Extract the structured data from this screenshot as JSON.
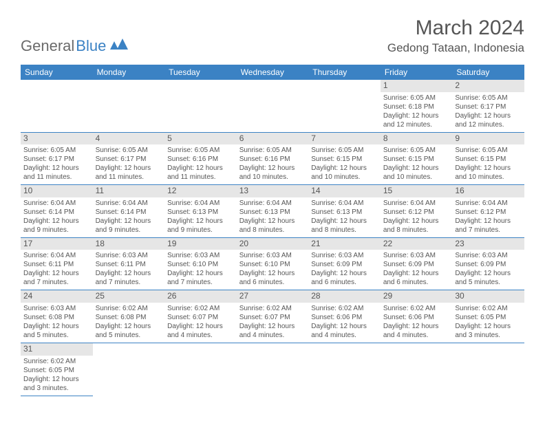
{
  "logo": {
    "text1": "General",
    "text2": "Blue"
  },
  "title": "March 2024",
  "location": "Gedong Tataan, Indonesia",
  "colors": {
    "header_bg": "#3b82c4",
    "daynum_bg": "#e6e6e6",
    "text": "#555555"
  },
  "weekdays": [
    "Sunday",
    "Monday",
    "Tuesday",
    "Wednesday",
    "Thursday",
    "Friday",
    "Saturday"
  ],
  "weeks": [
    [
      null,
      null,
      null,
      null,
      null,
      {
        "d": "1",
        "sr": "6:05 AM",
        "ss": "6:18 PM",
        "dl": "12 hours and 12 minutes."
      },
      {
        "d": "2",
        "sr": "6:05 AM",
        "ss": "6:17 PM",
        "dl": "12 hours and 12 minutes."
      }
    ],
    [
      {
        "d": "3",
        "sr": "6:05 AM",
        "ss": "6:17 PM",
        "dl": "12 hours and 11 minutes."
      },
      {
        "d": "4",
        "sr": "6:05 AM",
        "ss": "6:17 PM",
        "dl": "12 hours and 11 minutes."
      },
      {
        "d": "5",
        "sr": "6:05 AM",
        "ss": "6:16 PM",
        "dl": "12 hours and 11 minutes."
      },
      {
        "d": "6",
        "sr": "6:05 AM",
        "ss": "6:16 PM",
        "dl": "12 hours and 10 minutes."
      },
      {
        "d": "7",
        "sr": "6:05 AM",
        "ss": "6:15 PM",
        "dl": "12 hours and 10 minutes."
      },
      {
        "d": "8",
        "sr": "6:05 AM",
        "ss": "6:15 PM",
        "dl": "12 hours and 10 minutes."
      },
      {
        "d": "9",
        "sr": "6:05 AM",
        "ss": "6:15 PM",
        "dl": "12 hours and 10 minutes."
      }
    ],
    [
      {
        "d": "10",
        "sr": "6:04 AM",
        "ss": "6:14 PM",
        "dl": "12 hours and 9 minutes."
      },
      {
        "d": "11",
        "sr": "6:04 AM",
        "ss": "6:14 PM",
        "dl": "12 hours and 9 minutes."
      },
      {
        "d": "12",
        "sr": "6:04 AM",
        "ss": "6:13 PM",
        "dl": "12 hours and 9 minutes."
      },
      {
        "d": "13",
        "sr": "6:04 AM",
        "ss": "6:13 PM",
        "dl": "12 hours and 8 minutes."
      },
      {
        "d": "14",
        "sr": "6:04 AM",
        "ss": "6:13 PM",
        "dl": "12 hours and 8 minutes."
      },
      {
        "d": "15",
        "sr": "6:04 AM",
        "ss": "6:12 PM",
        "dl": "12 hours and 8 minutes."
      },
      {
        "d": "16",
        "sr": "6:04 AM",
        "ss": "6:12 PM",
        "dl": "12 hours and 7 minutes."
      }
    ],
    [
      {
        "d": "17",
        "sr": "6:04 AM",
        "ss": "6:11 PM",
        "dl": "12 hours and 7 minutes."
      },
      {
        "d": "18",
        "sr": "6:03 AM",
        "ss": "6:11 PM",
        "dl": "12 hours and 7 minutes."
      },
      {
        "d": "19",
        "sr": "6:03 AM",
        "ss": "6:10 PM",
        "dl": "12 hours and 7 minutes."
      },
      {
        "d": "20",
        "sr": "6:03 AM",
        "ss": "6:10 PM",
        "dl": "12 hours and 6 minutes."
      },
      {
        "d": "21",
        "sr": "6:03 AM",
        "ss": "6:09 PM",
        "dl": "12 hours and 6 minutes."
      },
      {
        "d": "22",
        "sr": "6:03 AM",
        "ss": "6:09 PM",
        "dl": "12 hours and 6 minutes."
      },
      {
        "d": "23",
        "sr": "6:03 AM",
        "ss": "6:09 PM",
        "dl": "12 hours and 5 minutes."
      }
    ],
    [
      {
        "d": "24",
        "sr": "6:03 AM",
        "ss": "6:08 PM",
        "dl": "12 hours and 5 minutes."
      },
      {
        "d": "25",
        "sr": "6:02 AM",
        "ss": "6:08 PM",
        "dl": "12 hours and 5 minutes."
      },
      {
        "d": "26",
        "sr": "6:02 AM",
        "ss": "6:07 PM",
        "dl": "12 hours and 4 minutes."
      },
      {
        "d": "27",
        "sr": "6:02 AM",
        "ss": "6:07 PM",
        "dl": "12 hours and 4 minutes."
      },
      {
        "d": "28",
        "sr": "6:02 AM",
        "ss": "6:06 PM",
        "dl": "12 hours and 4 minutes."
      },
      {
        "d": "29",
        "sr": "6:02 AM",
        "ss": "6:06 PM",
        "dl": "12 hours and 4 minutes."
      },
      {
        "d": "30",
        "sr": "6:02 AM",
        "ss": "6:05 PM",
        "dl": "12 hours and 3 minutes."
      }
    ],
    [
      {
        "d": "31",
        "sr": "6:02 AM",
        "ss": "6:05 PM",
        "dl": "12 hours and 3 minutes."
      },
      null,
      null,
      null,
      null,
      null,
      null
    ]
  ],
  "labels": {
    "sunrise": "Sunrise: ",
    "sunset": "Sunset: ",
    "daylight": "Daylight: "
  }
}
